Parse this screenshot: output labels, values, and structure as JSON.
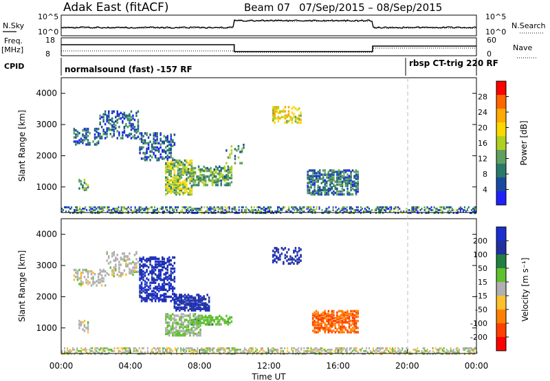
{
  "header": {
    "station": "Adak East (fitACF)",
    "beam": "Beam 07",
    "date_range": "07/Sep/2015 – 08/Sep/2015"
  },
  "panels": {
    "nsky_label": "N.Sky",
    "nsky_ticks": [
      "10^5",
      "10^0"
    ],
    "nsearch_label": "N.Search",
    "nsearch_ticks": [
      "10^5",
      "10^0"
    ],
    "freq_label": "Freq.",
    "freq_unit": "[MHz]",
    "freq_ticks": [
      "18",
      "8"
    ],
    "nave_label": "Nave",
    "nave_ticks": [
      "60",
      "0"
    ],
    "cpid_label": "CPID",
    "cpid_1": "normalsound (fast) -157 RF",
    "cpid_2": "rbsp CT-trig 220 RF"
  },
  "axes": {
    "ylabel": "Slant Range [km]",
    "yticks": [
      "4000",
      "3000",
      "2000",
      "1000"
    ],
    "xlabel": "Time UT",
    "xticks": [
      "00:00",
      "04:00",
      "08:00",
      "12:00",
      "16:00",
      "20:00",
      "00:00"
    ]
  },
  "colorbars": {
    "power": {
      "label": "Power [dB]",
      "ticks": [
        "28",
        "24",
        "20",
        "16",
        "12",
        "8",
        "4"
      ],
      "colors": [
        "#ff0000",
        "#ff6600",
        "#ffaa00",
        "#ffd700",
        "#b0d020",
        "#60a060",
        "#2a7a6a",
        "#1a4aa0",
        "#2020ff"
      ]
    },
    "velocity": {
      "label": "Velocity [m s⁻¹]",
      "ticks": [
        "200",
        "100",
        "50",
        "15",
        "-15",
        "-50",
        "-100",
        "-200"
      ],
      "colors": [
        "#1a2fd0",
        "#2030a0",
        "#208040",
        "#60c030",
        "#b0b0b0",
        "#ffc030",
        "#ff8000",
        "#ff4000",
        "#ff0000"
      ]
    }
  },
  "chart_data": [
    {
      "type": "heatmap",
      "name": "power",
      "xlabel": "Time UT",
      "ylabel": "Slant Range [km]",
      "xlim": [
        0,
        24
      ],
      "ylim": [
        180,
        4500
      ],
      "blobs": [
        {
          "t0": 0.7,
          "t1": 2.2,
          "r0": 2400,
          "r1": 2900,
          "v": 6,
          "density": 0.35
        },
        {
          "t0": 2.2,
          "t1": 4.5,
          "r0": 2600,
          "r1": 3500,
          "v": 6,
          "density": 0.3
        },
        {
          "t0": 4.5,
          "t1": 6.5,
          "r0": 1900,
          "r1": 2800,
          "v": 6,
          "density": 0.35
        },
        {
          "t0": 6.0,
          "t1": 7.5,
          "r0": 800,
          "r1": 1900,
          "v": 14,
          "density": 0.55
        },
        {
          "t0": 7.5,
          "t1": 9.8,
          "r0": 1100,
          "r1": 1700,
          "v": 11,
          "density": 0.5
        },
        {
          "t0": 1.0,
          "t1": 1.6,
          "r0": 900,
          "r1": 1300,
          "v": 9,
          "density": 0.4
        },
        {
          "t0": 14.2,
          "t1": 17.2,
          "r0": 800,
          "r1": 1600,
          "v": 7,
          "density": 0.55
        },
        {
          "t0": 9.5,
          "t1": 10.5,
          "r0": 1800,
          "r1": 2400,
          "v": 10,
          "density": 0.2
        },
        {
          "t0": 12.2,
          "t1": 13.8,
          "r0": 3100,
          "r1": 3600,
          "v": 18,
          "density": 0.35
        }
      ],
      "ground_scatter": {
        "r0": 200,
        "r1": 420,
        "v": 8
      }
    },
    {
      "type": "heatmap",
      "name": "velocity",
      "xlabel": "Time UT",
      "ylabel": "Slant Range [km]",
      "xlim": [
        0,
        24
      ],
      "ylim": [
        180,
        4500
      ],
      "blobs": [
        {
          "t0": 0.7,
          "t1": 2.6,
          "r0": 2400,
          "r1": 2900,
          "v": 0,
          "density": 0.35
        },
        {
          "t0": 2.6,
          "t1": 4.5,
          "r0": 2700,
          "r1": 3500,
          "v": 0,
          "density": 0.3
        },
        {
          "t0": 4.5,
          "t1": 6.5,
          "r0": 1900,
          "r1": 3300,
          "v": 220,
          "density": 0.45
        },
        {
          "t0": 6.0,
          "t1": 8.0,
          "r0": 800,
          "r1": 1500,
          "v": 30,
          "density": 0.55
        },
        {
          "t0": 6.5,
          "t1": 8.5,
          "r0": 1600,
          "r1": 2100,
          "v": 200,
          "density": 0.55
        },
        {
          "t0": 7.5,
          "t1": 9.8,
          "r0": 1150,
          "r1": 1450,
          "v": 60,
          "density": 0.55
        },
        {
          "t0": 14.5,
          "t1": 17.2,
          "r0": 900,
          "r1": 1600,
          "v": -150,
          "density": 0.55
        },
        {
          "t0": 12.2,
          "t1": 13.8,
          "r0": 3100,
          "r1": 3600,
          "v": 200,
          "density": 0.35
        },
        {
          "t0": 1.0,
          "t1": 1.6,
          "r0": 900,
          "r1": 1300,
          "v": 0,
          "density": 0.4
        }
      ],
      "ground_scatter": {
        "r0": 200,
        "r1": 420,
        "v": 0
      }
    }
  ]
}
